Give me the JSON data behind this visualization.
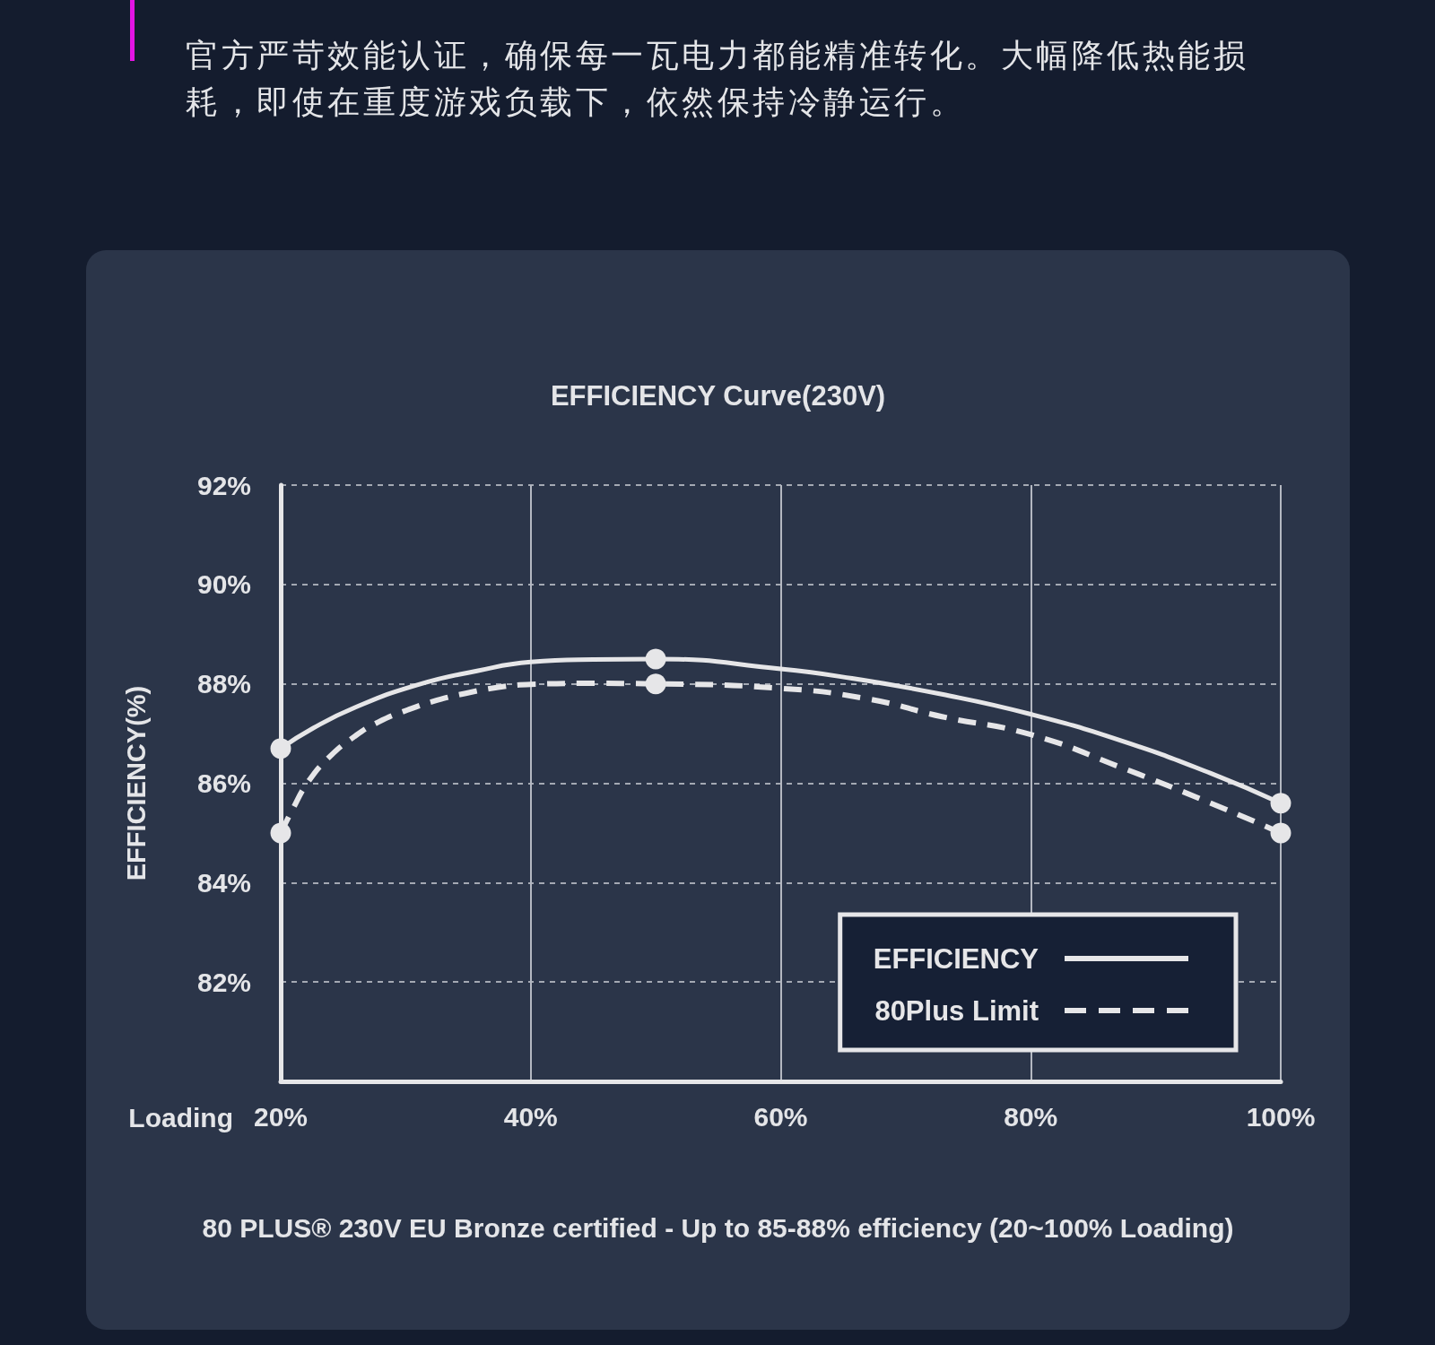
{
  "chart_data": {
    "type": "line",
    "title": "EFFICIENCY Curve(230V)",
    "xlabel": "Loading",
    "ylabel": "EFFICIENCY(%)",
    "annotations": [
      "官方严苛效能认证，确保每一瓦电力都能精准转化。大幅降低热能损耗，即使在重度游戏负载下，依然保持冷静运行。",
      "80 PLUS® 230V EU Bronze certified - Up to 85-88% efficiency (20~100% Loading)"
    ],
    "xlim": [
      20,
      100
    ],
    "xticks": [
      {
        "value": 20,
        "label": "20%"
      },
      {
        "value": 40,
        "label": "40%"
      },
      {
        "value": 60,
        "label": "60%"
      },
      {
        "value": 80,
        "label": "80%"
      },
      {
        "value": 100,
        "label": "100%"
      }
    ],
    "ylim": [
      80,
      92
    ],
    "yticks": [
      {
        "value": 82,
        "label": "82%"
      },
      {
        "value": 84,
        "label": "84%"
      },
      {
        "value": 86,
        "label": "86%"
      },
      {
        "value": 88,
        "label": "88%"
      },
      {
        "value": 90,
        "label": "90%"
      },
      {
        "value": 92,
        "label": "92%"
      }
    ],
    "grid": true,
    "legend": "bottom right",
    "series": [
      {
        "name": "EFFICIENCY",
        "color": "#e6e6e8",
        "line_style": "solid",
        "marker": "none",
        "x": [
          20,
          22.6,
          25.9,
          30.8,
          35.7,
          40,
          45,
          50,
          60,
          65.7,
          72.9,
          80,
          87.2,
          94.4,
          100
        ],
        "values": [
          86.7,
          87.11,
          87.52,
          87.97,
          88.26,
          88.44,
          88.49,
          88.5,
          88.3,
          88.11,
          87.79,
          87.39,
          86.86,
          86.2,
          85.6
        ]
      },
      {
        "name": "80Plus Limit",
        "color": "#e6e6e8",
        "line_style": "dashed",
        "marker": "none",
        "x": [
          20,
          20.9,
          22.2,
          23.9,
          25.9,
          27.8,
          30.2,
          32.5,
          34.8,
          37.4,
          40,
          44.6,
          50,
          60,
          66.9,
          72.9,
          80,
          87.2,
          94.4,
          100
        ],
        "values": [
          85.0,
          85.45,
          86.03,
          86.53,
          86.94,
          87.23,
          87.48,
          87.67,
          87.81,
          87.93,
          87.99,
          88.01,
          88.0,
          87.91,
          87.7,
          87.34,
          86.98,
          86.32,
          85.6,
          85.0
        ]
      },
      {
        "type": "scatter",
        "color": "#e6e6e8",
        "marker": "circle",
        "x": [
          20,
          50,
          100
        ],
        "values": [
          86.7,
          88.5,
          85.6
        ]
      },
      {
        "type": "scatter",
        "color": "#e6e6e8",
        "marker": "circle",
        "x": [
          20,
          50,
          100
        ],
        "values": [
          85.0,
          88.0,
          85.0
        ]
      }
    ]
  }
}
